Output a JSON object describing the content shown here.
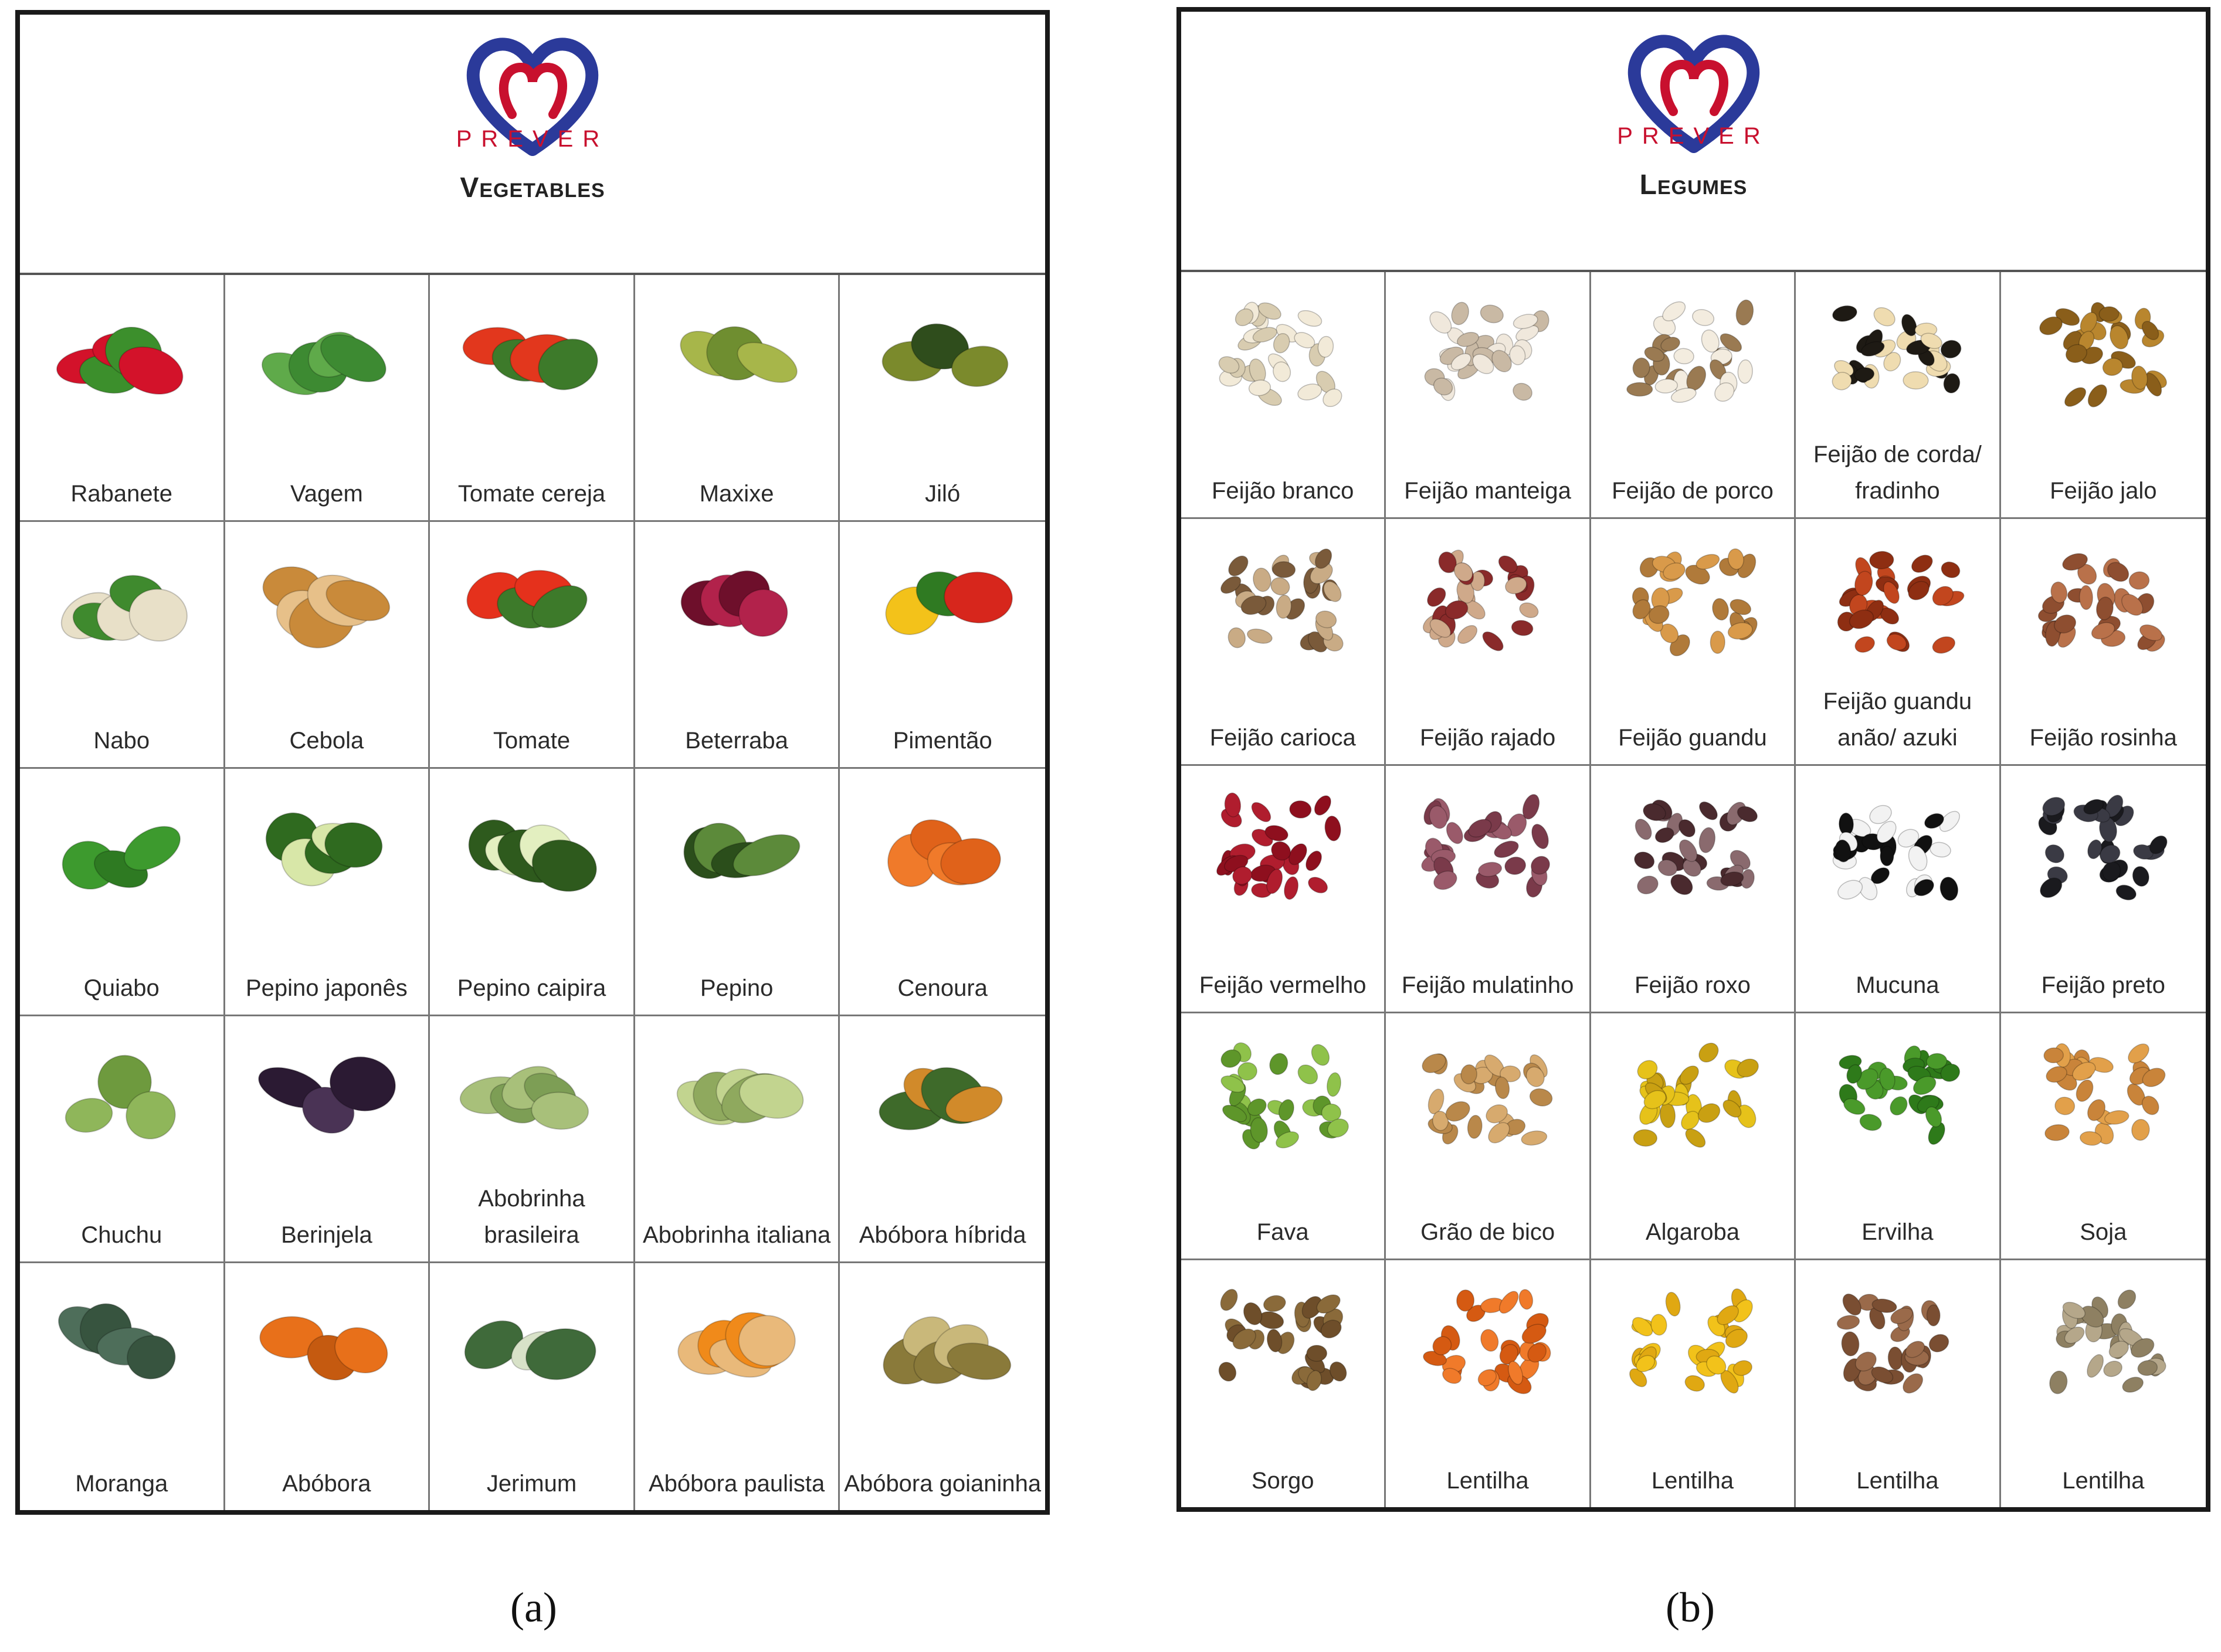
{
  "panel_a": {
    "brand": "PREVER",
    "title": "Vegetables",
    "items": [
      {
        "label": "Rabanete",
        "icon": "radish-icon",
        "colors": [
          "#d3122a",
          "#3c8f2c"
        ]
      },
      {
        "label": "Vagem",
        "icon": "green-bean-icon",
        "colors": [
          "#5faa4a",
          "#3d8a32"
        ]
      },
      {
        "label": "Tomate cereja",
        "icon": "cherry-tomato-icon",
        "colors": [
          "#e2371d",
          "#3d7a2a"
        ]
      },
      {
        "label": "Maxixe",
        "icon": "gherkin-icon",
        "colors": [
          "#a7b64a",
          "#6f8e30"
        ]
      },
      {
        "label": "Jiló",
        "icon": "scarlet-eggplant-icon",
        "colors": [
          "#7b8a2c",
          "#2f4d1c"
        ]
      },
      {
        "label": "Nabo",
        "icon": "turnip-icon",
        "colors": [
          "#e8e0c8",
          "#3f8a2e"
        ]
      },
      {
        "label": "Cebola",
        "icon": "onion-icon",
        "colors": [
          "#c98a3a",
          "#e7c089"
        ]
      },
      {
        "label": "Tomate",
        "icon": "tomato-icon",
        "colors": [
          "#e5311c",
          "#3d7a2a"
        ]
      },
      {
        "label": "Beterraba",
        "icon": "beet-icon",
        "colors": [
          "#6e0f2b",
          "#b2224b"
        ]
      },
      {
        "label": "Pimentão",
        "icon": "bell-pepper-icon",
        "colors": [
          "#f3c21a",
          "#2f7a22",
          "#d7261c"
        ]
      },
      {
        "label": "Quiabo",
        "icon": "okra-icon",
        "colors": [
          "#3d9a2e",
          "#2e7a22"
        ]
      },
      {
        "label": "Pepino japonês",
        "icon": "japanese-cucumber-icon",
        "colors": [
          "#2f6a1f",
          "#d8e7a8"
        ]
      },
      {
        "label": "Pepino caipira",
        "icon": "zucchini-icon",
        "colors": [
          "#2e5a1d",
          "#e3efc0"
        ]
      },
      {
        "label": "Pepino",
        "icon": "cucumber-icon",
        "colors": [
          "#2b4e1b",
          "#5c8a3a"
        ]
      },
      {
        "label": "Cenoura",
        "icon": "carrot-icon",
        "colors": [
          "#f07a2a",
          "#e0621a"
        ]
      },
      {
        "label": "Chuchu",
        "icon": "chayote-icon",
        "colors": [
          "#8fb65a",
          "#6e9a3e"
        ]
      },
      {
        "label": "Berinjela",
        "icon": "eggplant-icon",
        "colors": [
          "#2b1a33",
          "#4a3355"
        ]
      },
      {
        "label": "Abobrinha brasileira",
        "icon": "brazilian-zucchini-icon",
        "colors": [
          "#a8c07a",
          "#7d9e55"
        ]
      },
      {
        "label": "Abobrinha italiana",
        "icon": "italian-zucchini-icon",
        "colors": [
          "#c2d48f",
          "#8fa95e"
        ]
      },
      {
        "label": "Abóbora híbrida",
        "icon": "hybrid-pumpkin-icon",
        "colors": [
          "#3e6a2a",
          "#d18a2a"
        ]
      },
      {
        "label": "Moranga",
        "icon": "kabocha-icon",
        "colors": [
          "#4e6e5a",
          "#37543f"
        ]
      },
      {
        "label": "Abóbora",
        "icon": "pumpkin-icon",
        "colors": [
          "#e8701a",
          "#c55a10"
        ]
      },
      {
        "label": "Jerimum",
        "icon": "striped-squash-icon",
        "colors": [
          "#3f6a3a",
          "#d8e2c8"
        ]
      },
      {
        "label": "Abóbora paulista",
        "icon": "butternut-squash-icon",
        "colors": [
          "#e9b97a",
          "#f08a1a"
        ]
      },
      {
        "label": "Abóbora goianinha",
        "icon": "neck-squash-icon",
        "colors": [
          "#8a7a3a",
          "#c9b87a"
        ]
      }
    ],
    "caption": "(a)"
  },
  "panel_b": {
    "brand": "PREVER",
    "title": "Legumes",
    "items": [
      {
        "label": "Feijão branco",
        "icon": "white-bean-icon",
        "colors": [
          "#f2ead8",
          "#d8ccb0"
        ]
      },
      {
        "label": "Feijão manteiga",
        "icon": "butter-bean-icon",
        "colors": [
          "#f0e8dc",
          "#c9b9a4"
        ]
      },
      {
        "label": "Feijão de porco",
        "icon": "jack-bean-icon",
        "colors": [
          "#f3ecdf",
          "#9a7a52"
        ]
      },
      {
        "label": "Feijão de corda/ fradinho",
        "icon": "black-eyed-pea-icon",
        "colors": [
          "#efdcb0",
          "#1e1a14"
        ]
      },
      {
        "label": "Feijão jalo",
        "icon": "jalo-bean-icon",
        "colors": [
          "#b9862e",
          "#8a5e1a"
        ]
      },
      {
        "label": "Feijão carioca",
        "icon": "carioca-bean-icon",
        "colors": [
          "#c9ab85",
          "#7a5a3a"
        ]
      },
      {
        "label": "Feijão rajado",
        "icon": "speckled-bean-icon",
        "colors": [
          "#cfa98a",
          "#8a2a2a"
        ]
      },
      {
        "label": "Feijão guandu",
        "icon": "pigeon-pea-icon",
        "colors": [
          "#d99a4a",
          "#b07a3a"
        ]
      },
      {
        "label": "Feijão guandu anão/ azuki",
        "icon": "azuki-bean-icon",
        "colors": [
          "#c2461e",
          "#8e2e12"
        ]
      },
      {
        "label": "Feijão rosinha",
        "icon": "pink-bean-icon",
        "colors": [
          "#b9714a",
          "#8e4e30"
        ]
      },
      {
        "label": "Feijão vermelho",
        "icon": "red-kidney-bean-icon",
        "colors": [
          "#8e0f1e",
          "#b01d2e"
        ]
      },
      {
        "label": "Feijão mulatinho",
        "icon": "mulatinho-bean-icon",
        "colors": [
          "#7a3a4a",
          "#9a5a6a"
        ]
      },
      {
        "label": "Feijão roxo",
        "icon": "purple-bean-icon",
        "colors": [
          "#4a2a2e",
          "#8a6a6e"
        ]
      },
      {
        "label": "Mucuna",
        "icon": "velvet-bean-icon",
        "colors": [
          "#111111",
          "#f2f2f2"
        ]
      },
      {
        "label": "Feijão preto",
        "icon": "black-bean-icon",
        "colors": [
          "#1a1a1e",
          "#3a3a44"
        ]
      },
      {
        "label": "Fava",
        "icon": "fava-bean-icon",
        "colors": [
          "#8fc24a",
          "#5e962a"
        ]
      },
      {
        "label": "Grão de bico",
        "icon": "chickpea-icon",
        "colors": [
          "#d7aa6e",
          "#b9884a"
        ]
      },
      {
        "label": "Algaroba",
        "icon": "mesquite-seed-icon",
        "colors": [
          "#e6c21a",
          "#c9a012"
        ]
      },
      {
        "label": "Ervilha",
        "icon": "pea-icon",
        "colors": [
          "#4a9a2a",
          "#2e7a1a"
        ]
      },
      {
        "label": "Soja",
        "icon": "soybean-icon",
        "colors": [
          "#e2a04a",
          "#c9843a"
        ]
      },
      {
        "label": "Sorgo",
        "icon": "sorghum-icon",
        "colors": [
          "#8a6a3a",
          "#6e4e2a"
        ]
      },
      {
        "label": "Lentilha",
        "icon": "red-lentil-icon",
        "colors": [
          "#f07a2a",
          "#d55a12"
        ]
      },
      {
        "label": "Lentilha",
        "icon": "yellow-lentil-icon",
        "colors": [
          "#f2c21a",
          "#e0a812"
        ]
      },
      {
        "label": "Lentilha",
        "icon": "brown-lentil-icon",
        "colors": [
          "#9a6a4a",
          "#7a4e32"
        ]
      },
      {
        "label": "Lentilha",
        "icon": "green-lentil-icon",
        "colors": [
          "#b5a78a",
          "#8e8062"
        ]
      }
    ],
    "caption": "(b)"
  }
}
